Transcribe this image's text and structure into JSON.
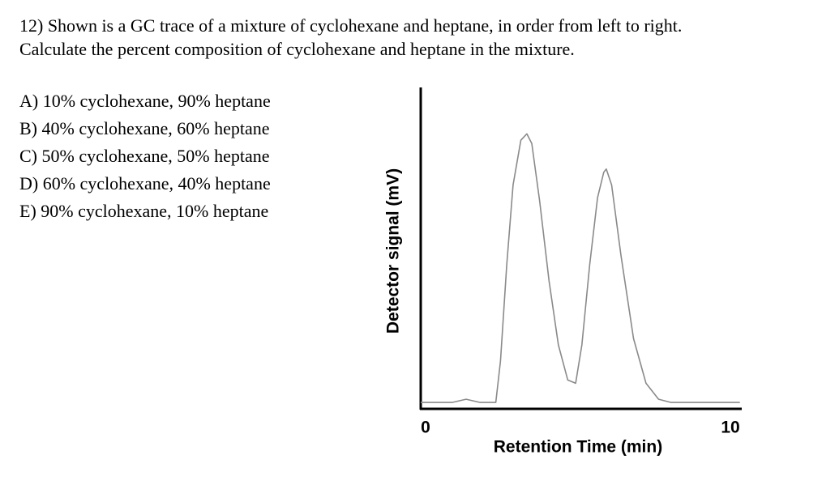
{
  "question": {
    "lines": [
      "12) Shown is a GC trace of a mixture of cyclohexane and heptane, in order from left to right.",
      "Calculate the percent composition of cyclohexane and heptane in the mixture."
    ]
  },
  "options": [
    "A) 10% cyclohexane, 90% heptane",
    "B) 40% cyclohexane, 60% heptane",
    "C) 50% cyclohexane, 50% heptane",
    "D) 60% cyclohexane, 40% heptane",
    "E) 90% cyclohexane, 10% heptane"
  ],
  "chart_data": {
    "type": "line",
    "x_label": "Retention Time (min)",
    "y_label": "Detector signal (mV)",
    "x": [
      0,
      1,
      1.45,
      1.9,
      2.4,
      2.55,
      2.75,
      2.95,
      3.2,
      3.39,
      3.55,
      3.8,
      4.1,
      4.4,
      4.7,
      4.95,
      5.15,
      5.4,
      5.65,
      5.85,
      5.93,
      6.1,
      6.4,
      6.8,
      7.2,
      7.6,
      8,
      10.2
    ],
    "series": [
      {
        "color": "#8a8a8a",
        "values": [
          2,
          2,
          3,
          2,
          2,
          15,
          45,
          70,
          84,
          86,
          83,
          65,
          40,
          20,
          9,
          8,
          20,
          45,
          66,
          74,
          75,
          70,
          48,
          22,
          8,
          3,
          2,
          2
        ]
      }
    ],
    "xlim": [
      0,
      10
    ],
    "xticks": [
      0,
      10
    ],
    "ylim": [
      0,
      100
    ]
  }
}
